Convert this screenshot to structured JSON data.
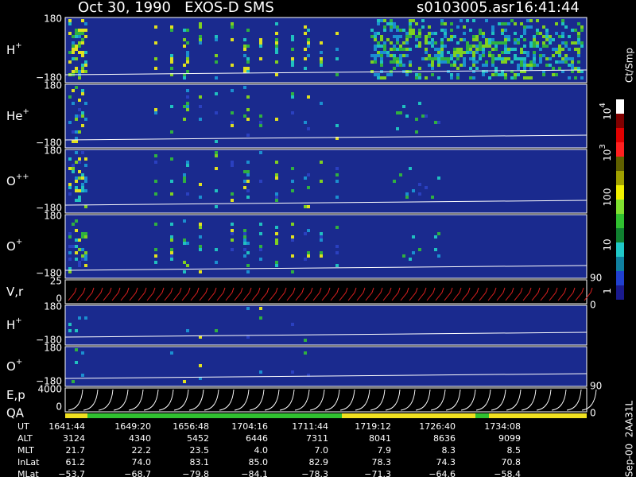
{
  "header": {
    "title": "Oct 30, 1990   EXOS-D SMS",
    "file": "s0103005.asr",
    "time": "16:41:44"
  },
  "panels": [
    {
      "label": {
        "base": "H",
        "sup": "+"
      },
      "ticks": [
        "180",
        "−180"
      ]
    },
    {
      "label": {
        "base": "He",
        "sup": "+"
      },
      "ticks": [
        "180",
        "−180"
      ]
    },
    {
      "label": {
        "base": "O",
        "sup": "++"
      },
      "ticks": [
        "180",
        "−180"
      ]
    },
    {
      "label": {
        "base": "O",
        "sup": "+"
      },
      "ticks": [
        "180",
        "−180"
      ]
    },
    {
      "label": {
        "base": "V,r"
      },
      "ticks": [
        "25",
        "0"
      ],
      "right_ticks": [
        "90",
        "0"
      ]
    },
    {
      "label": {
        "base": "H",
        "sup": "+"
      },
      "ticks": [
        "180",
        "−180"
      ]
    },
    {
      "label": {
        "base": "O",
        "sup": "+"
      },
      "ticks": [
        "180",
        "−180"
      ]
    },
    {
      "label": {
        "base": "E,p"
      },
      "sublabel": "QA",
      "ticks": [
        "4000",
        "0"
      ],
      "right_ticks": [
        "90",
        "0"
      ]
    }
  ],
  "colorbar": {
    "unit": "Ct/Smp",
    "ticks": [
      {
        "base": "10",
        "sup": "4"
      },
      {
        "base": "10",
        "sup": "3"
      },
      {
        "base": "100"
      },
      {
        "base": "10"
      },
      {
        "base": "1"
      }
    ]
  },
  "ephemeris": {
    "rows": [
      {
        "name": "UT",
        "values": [
          "1641:44",
          "1649:20",
          "1656:48",
          "1704:16",
          "1711:44",
          "1719:12",
          "1726:40",
          "1734:08"
        ]
      },
      {
        "name": "ALT",
        "values": [
          "3124",
          "4340",
          "5452",
          "6446",
          "7311",
          "8041",
          "8636",
          "9099"
        ]
      },
      {
        "name": "MLT",
        "values": [
          "21.7",
          "22.2",
          "23.5",
          "4.0",
          "7.0",
          "7.9",
          "8.3",
          "8.5"
        ]
      },
      {
        "name": "InLat",
        "values": [
          "61.2",
          "74.0",
          "83.1",
          "85.0",
          "82.9",
          "78.3",
          "74.3",
          "70.8"
        ]
      },
      {
        "name": "MLat",
        "values": [
          "−53.7",
          "−68.7",
          "−79.8",
          "−84.1",
          "−78.3",
          "−71.3",
          "−64.6",
          "−58.4"
        ]
      }
    ]
  },
  "footer": "Sep-00  2AA31L"
}
